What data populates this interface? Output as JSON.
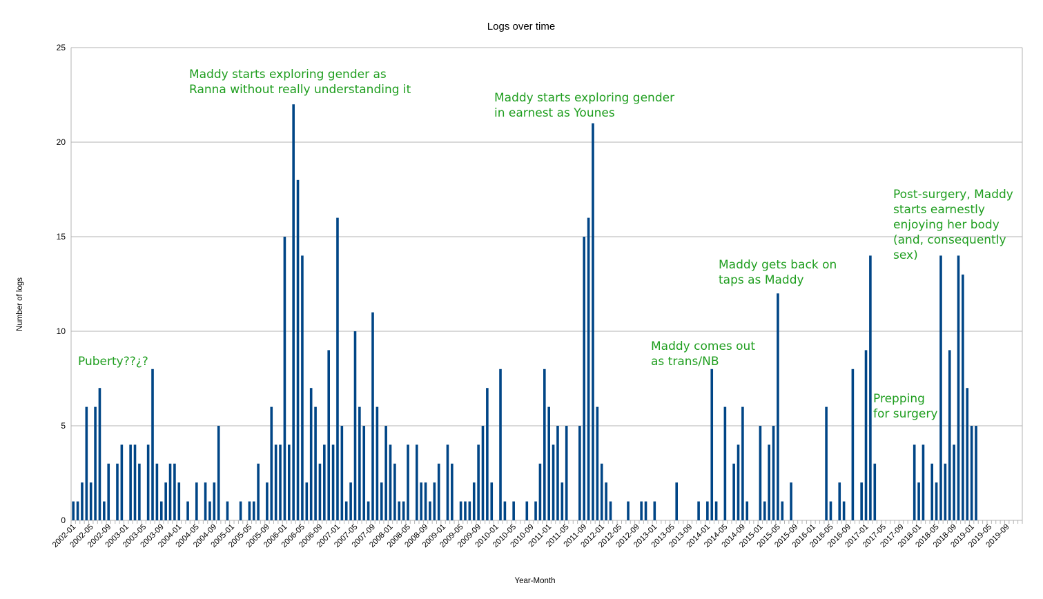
{
  "chart_data": {
    "type": "bar",
    "title": "Logs over time",
    "xlabel": "Year-Month",
    "ylabel": "Number of logs",
    "ylim": [
      0,
      25
    ],
    "yticks": [
      0,
      5,
      10,
      15,
      20,
      25
    ],
    "grid": "horizontal",
    "bar_color": "#004586",
    "annotation_color": "#1f9e1f",
    "categories_range": [
      "2002-01",
      "2019-12"
    ],
    "tick_labels": [
      "2002-01",
      "2002-05",
      "2002-09",
      "2003-01",
      "2003-05",
      "2003-09",
      "2004-01",
      "2004-05",
      "2004-09",
      "2005-01",
      "2005-05",
      "2005-09",
      "2006-01",
      "2006-05",
      "2006-09",
      "2007-01",
      "2007-05",
      "2007-09",
      "2008-01",
      "2008-05",
      "2008-09",
      "2009-01",
      "2009-05",
      "2009-09",
      "2010-01",
      "2010-05",
      "2010-09",
      "2011-01",
      "2011-05",
      "2011-09",
      "2012-01",
      "2012-05",
      "2012-09",
      "2013-01",
      "2013-05",
      "2013-09",
      "2014-01",
      "2014-05",
      "2014-09",
      "2015-01",
      "2015-05",
      "2015-09",
      "2016-01",
      "2016-05",
      "2016-09",
      "2017-01",
      "2017-05",
      "2017-09",
      "2018-01",
      "2018-05",
      "2018-09",
      "2019-01",
      "2019-05",
      "2019-09"
    ],
    "values": [
      1,
      1,
      2,
      6,
      2,
      6,
      7,
      1,
      3,
      0,
      3,
      4,
      0,
      4,
      4,
      3,
      0,
      4,
      8,
      3,
      1,
      2,
      3,
      3,
      2,
      0,
      1,
      0,
      2,
      0,
      2,
      1,
      2,
      5,
      0,
      1,
      0,
      0,
      1,
      0,
      1,
      1,
      3,
      0,
      2,
      6,
      4,
      4,
      15,
      4,
      22,
      18,
      14,
      2,
      7,
      6,
      3,
      4,
      9,
      4,
      16,
      5,
      1,
      2,
      10,
      6,
      5,
      1,
      11,
      6,
      2,
      5,
      4,
      3,
      1,
      1,
      4,
      0,
      4,
      2,
      2,
      1,
      2,
      3,
      0,
      4,
      3,
      0,
      1,
      1,
      1,
      2,
      4,
      5,
      7,
      2,
      0,
      8,
      1,
      0,
      1,
      0,
      0,
      1,
      0,
      1,
      3,
      8,
      6,
      4,
      5,
      2,
      5,
      0,
      0,
      5,
      15,
      16,
      21,
      6,
      3,
      2,
      1,
      0,
      0,
      0,
      1,
      0,
      0,
      1,
      1,
      0,
      1,
      0,
      0,
      0,
      0,
      2,
      0,
      0,
      0,
      0,
      1,
      0,
      1,
      8,
      1,
      0,
      6,
      0,
      3,
      4,
      6,
      1,
      0,
      0,
      5,
      1,
      4,
      5,
      12,
      1,
      0,
      2,
      0,
      0,
      0,
      0,
      0,
      0,
      0,
      6,
      1,
      0,
      2,
      1,
      0,
      8,
      0,
      2,
      9,
      14,
      3,
      0,
      0,
      0,
      0,
      0,
      0,
      0,
      0,
      4,
      2,
      4,
      0,
      3,
      2,
      14,
      3,
      9,
      4,
      14,
      13,
      7,
      5,
      5,
      0,
      0,
      0,
      0,
      0,
      0,
      0,
      0,
      0,
      0
    ],
    "annotations": [
      {
        "lines": [
          "Puberty??¿?"
        ]
      },
      {
        "lines": [
          "Maddy starts exploring gender as",
          "Ranna without really understanding it"
        ]
      },
      {
        "lines": [
          "Maddy starts exploring gender",
          "in earnest as Younes"
        ]
      },
      {
        "lines": [
          "Maddy comes out",
          "as trans/NB"
        ]
      },
      {
        "lines": [
          "Maddy gets back on",
          "taps as Maddy"
        ]
      },
      {
        "lines": [
          "Prepping",
          "for surgery"
        ]
      },
      {
        "lines": [
          "Post-surgery, Maddy",
          "starts earnestly",
          "enjoying her body",
          "(and, consequently",
          "sex)"
        ]
      }
    ]
  }
}
